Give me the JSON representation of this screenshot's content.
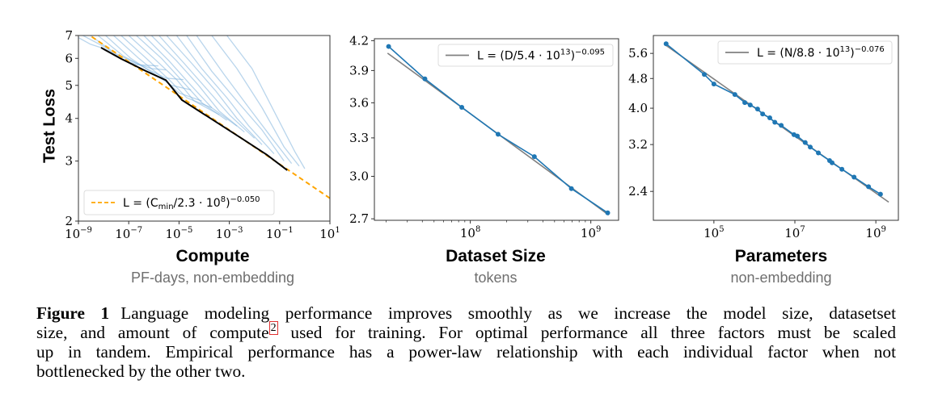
{
  "figure": {
    "label": "Figure 1",
    "caption_lines": [
      "Language modeling performance improves smoothly as we increase the model size, datasetset",
      [
        "size, and amount of compute",
        "2",
        " used for training.  For optimal performance all three factors must be scaled"
      ],
      "up in tandem.  Empirical performance has a power-law relationship with each individual factor when not",
      "bottlenecked by the other two."
    ],
    "footnote_ref": "2"
  },
  "chart_data": [
    {
      "type": "line",
      "id": "compute",
      "title": "Compute",
      "xlabel": "Compute",
      "xlabel_sub": "PF-days, non-embedding",
      "ylabel": "Test Loss",
      "xscale": "log",
      "yscale": "log",
      "xlim": [
        1e-09,
        10
      ],
      "ylim": [
        2,
        7
      ],
      "xticks": [
        {
          "value": 1e-09,
          "label": "10",
          "exp": "−9"
        },
        {
          "value": 1e-07,
          "label": "10",
          "exp": "−7"
        },
        {
          "value": 1e-05,
          "label": "10",
          "exp": "−5"
        },
        {
          "value": 0.001,
          "label": "10",
          "exp": "−3"
        },
        {
          "value": 0.1,
          "label": "10",
          "exp": "−1"
        },
        {
          "value": 10,
          "label": "10",
          "exp": "1"
        }
      ],
      "yticks": [
        {
          "value": 2,
          "label": "2"
        },
        {
          "value": 3,
          "label": "3"
        },
        {
          "value": 4,
          "label": "4"
        },
        {
          "value": 5,
          "label": "5"
        },
        {
          "value": 6,
          "label": "6"
        },
        {
          "value": 7,
          "label": "7"
        }
      ],
      "grid": false,
      "legend": {
        "position": "lower-left",
        "entries": [
          {
            "style": "dashed",
            "color": "#ffa500",
            "label_parts": [
              "L = (C",
              "min",
              "/2.3 · 10",
              "8",
              ")",
              "−0.050"
            ]
          }
        ]
      },
      "fit": {
        "name": "L = (C_min/2.3·10^8)^-0.050",
        "scale": 230000000.0,
        "exponent": -0.05,
        "color": "#ffa500",
        "style": "dashed"
      },
      "frontier": {
        "name": "compute-efficient frontier",
        "color": "#000000",
        "points": [
          [
            7.9e-09,
            6.45
          ],
          [
            5e-08,
            5.98
          ],
          [
            4.7e-07,
            5.51
          ],
          [
            3e-06,
            5.18
          ],
          [
            6.3e-06,
            4.84
          ],
          [
            1.3e-05,
            4.53
          ],
          [
            0.0002,
            3.98
          ],
          [
            0.0034,
            3.48
          ],
          [
            0.031,
            3.13
          ],
          [
            0.2,
            2.82
          ]
        ]
      },
      "training_curves": {
        "color": "#7fb3dc",
        "note": "individual training runs (light blue)",
        "runs": [
          {
            "start": 1e-09,
            "points": [
              [
                1e-09,
                6.9
              ],
              [
                3e-09,
                6.6
              ],
              [
                7.9e-09,
                6.45
              ]
            ]
          },
          {
            "start": 1.5e-09,
            "points": [
              [
                1.5e-09,
                7.0
              ],
              [
                1e-08,
                6.5
              ],
              [
                5e-08,
                6.0
              ],
              [
                2e-07,
                5.75
              ],
              [
                1.5e-06,
                5.7
              ]
            ]
          },
          {
            "start": 3e-09,
            "points": [
              [
                3e-09,
                7.0
              ],
              [
                3e-08,
                6.2
              ],
              [
                2e-07,
                5.8
              ],
              [
                8e-07,
                5.6
              ],
              [
                3e-06,
                5.55
              ]
            ]
          },
          {
            "start": 6e-09,
            "points": [
              [
                6e-09,
                7.0
              ],
              [
                6e-08,
                6.1
              ],
              [
                5e-07,
                5.6
              ],
              [
                3e-06,
                5.25
              ],
              [
                1.5e-05,
                5.2
              ]
            ]
          },
          {
            "start": 1.2e-08,
            "points": [
              [
                1.2e-08,
                7.0
              ],
              [
                1.2e-07,
                6.0
              ],
              [
                1e-06,
                5.4
              ],
              [
                5e-06,
                5.0
              ],
              [
                3e-05,
                4.85
              ]
            ]
          },
          {
            "start": 2.5e-08,
            "points": [
              [
                2.5e-08,
                7.0
              ],
              [
                2.5e-07,
                6.0
              ],
              [
                2e-06,
                5.3
              ],
              [
                1e-05,
                4.75
              ],
              [
                8e-05,
                4.5
              ]
            ]
          },
          {
            "start": 5e-08,
            "points": [
              [
                5e-08,
                7.0
              ],
              [
                5e-07,
                6.0
              ],
              [
                4e-06,
                5.2
              ],
              [
                2e-05,
                4.6
              ],
              [
                0.0002,
                4.3
              ]
            ]
          },
          {
            "start": 1e-07,
            "points": [
              [
                1e-07,
                7.0
              ],
              [
                1e-06,
                6.0
              ],
              [
                8e-06,
                5.2
              ],
              [
                4e-05,
                4.5
              ],
              [
                0.0004,
                4.1
              ]
            ]
          },
          {
            "start": 2e-07,
            "points": [
              [
                2e-07,
                7.0
              ],
              [
                2e-06,
                6.0
              ],
              [
                1.5e-05,
                5.1
              ],
              [
                8e-05,
                4.45
              ],
              [
                0.0008,
                3.95
              ]
            ]
          },
          {
            "start": 4e-07,
            "points": [
              [
                4e-07,
                7.0
              ],
              [
                4e-06,
                5.9
              ],
              [
                3e-05,
                5.0
              ],
              [
                0.0002,
                4.3
              ],
              [
                0.002,
                3.8
              ]
            ]
          },
          {
            "start": 8e-07,
            "points": [
              [
                8e-07,
                7.0
              ],
              [
                8e-06,
                5.9
              ],
              [
                6e-05,
                5.0
              ],
              [
                0.0004,
                4.2
              ],
              [
                0.004,
                3.65
              ]
            ]
          },
          {
            "start": 1.6e-06,
            "points": [
              [
                1.6e-06,
                7.0
              ],
              [
                1.6e-05,
                5.8
              ],
              [
                0.00012,
                4.9
              ],
              [
                0.001,
                4.1
              ],
              [
                0.01,
                3.5
              ]
            ]
          },
          {
            "start": 3.2e-06,
            "points": [
              [
                3.2e-06,
                7.0
              ],
              [
                3.2e-05,
                5.8
              ],
              [
                0.0003,
                4.8
              ],
              [
                0.002,
                4.0
              ],
              [
                0.02,
                3.35
              ]
            ]
          },
          {
            "start": 8e-06,
            "points": [
              [
                8e-06,
                7.0
              ],
              [
                8e-05,
                5.6
              ],
              [
                0.0008,
                4.6
              ],
              [
                0.006,
                3.8
              ],
              [
                0.06,
                3.15
              ]
            ]
          },
          {
            "start": 2e-05,
            "points": [
              [
                2e-05,
                7.0
              ],
              [
                0.0002,
                5.5
              ],
              [
                0.002,
                4.5
              ],
              [
                0.02,
                3.7
              ],
              [
                0.15,
                3.0
              ]
            ]
          },
          {
            "start": 5e-05,
            "points": [
              [
                5e-05,
                7.0
              ],
              [
                0.0006,
                5.4
              ],
              [
                0.006,
                4.3
              ],
              [
                0.05,
                3.5
              ],
              [
                0.3,
                2.95
              ]
            ]
          },
          {
            "start": 0.0002,
            "points": [
              [
                0.0002,
                7.0
              ],
              [
                0.002,
                5.6
              ],
              [
                0.02,
                4.3
              ],
              [
                0.15,
                3.3
              ],
              [
                0.6,
                2.9
              ]
            ]
          },
          {
            "start": 0.0008,
            "points": [
              [
                0.0008,
                7.0
              ],
              [
                0.008,
                5.6
              ],
              [
                0.06,
                4.2
              ],
              [
                0.4,
                3.2
              ],
              [
                1.0,
                2.85
              ]
            ]
          }
        ]
      }
    },
    {
      "type": "line",
      "id": "dataset",
      "title": "Dataset Size",
      "xlabel": "Dataset Size",
      "xlabel_sub": "tokens",
      "xscale": "log",
      "yscale": "log",
      "xlim": [
        16000000.0,
        1700000000.0
      ],
      "ylim": [
        2.69,
        4.22
      ],
      "xticks": [
        {
          "value": 100000000.0,
          "label": "10",
          "exp": "8"
        },
        {
          "value": 1000000000.0,
          "label": "10",
          "exp": "9"
        }
      ],
      "yticks": [
        {
          "value": 2.7,
          "label": "2.7"
        },
        {
          "value": 3.0,
          "label": "3.0"
        },
        {
          "value": 3.3,
          "label": "3.3"
        },
        {
          "value": 3.6,
          "label": "3.6"
        },
        {
          "value": 3.9,
          "label": "3.9"
        },
        {
          "value": 4.2,
          "label": "4.2"
        }
      ],
      "grid": false,
      "legend": {
        "position": "upper-right",
        "entries": [
          {
            "style": "solid",
            "color": "#808080",
            "label_parts": [
              "L = (D/5.4 · 10",
              "13",
              ")",
              "−0.095"
            ]
          }
        ]
      },
      "fit": {
        "scale": 54000000000000.0,
        "exponent": -0.095,
        "color": "#808080",
        "style": "solid"
      },
      "series": [
        {
          "name": "empirical",
          "color": "#1f77b4",
          "marker": "circle",
          "x": [
            21000000.0,
            42000000.0,
            85000000.0,
            170000000.0,
            340000000.0,
            690000000.0,
            1380000000.0
          ],
          "y": [
            4.14,
            3.82,
            3.56,
            3.33,
            3.15,
            2.91,
            2.74
          ]
        }
      ]
    },
    {
      "type": "line",
      "id": "parameters",
      "title": "Parameters",
      "xlabel": "Parameters",
      "xlabel_sub": "non-embedding",
      "xscale": "log",
      "yscale": "log",
      "xlim": [
        3200.0,
        3600000000.0
      ],
      "ylim": [
        2.01,
        6.25
      ],
      "xticks": [
        {
          "value": 100000.0,
          "label": "10",
          "exp": "5"
        },
        {
          "value": 10000000.0,
          "label": "10",
          "exp": "7"
        },
        {
          "value": 1000000000.0,
          "label": "10",
          "exp": "9"
        }
      ],
      "yticks": [
        {
          "value": 2.4,
          "label": "2.4"
        },
        {
          "value": 3.2,
          "label": "3.2"
        },
        {
          "value": 4.0,
          "label": "4.0"
        },
        {
          "value": 4.8,
          "label": "4.8"
        },
        {
          "value": 5.6,
          "label": "5.6"
        }
      ],
      "grid": false,
      "legend": {
        "position": "upper-right",
        "entries": [
          {
            "style": "solid",
            "color": "#808080",
            "label_parts": [
              "L = (N/8.8 · 10",
              "13",
              ")",
              "−0.076"
            ]
          }
        ]
      },
      "fit": {
        "scale": 88000000000000.0,
        "exponent": -0.076,
        "color": "#808080",
        "style": "solid"
      },
      "series": [
        {
          "name": "empirical",
          "color": "#1f77b4",
          "marker": "circle",
          "x": [
            6600.0,
            58000.0,
            100000.0,
            330000.0,
            580000.0,
            790000.0,
            1200000.0,
            1600000.0,
            2400000.0,
            3200000.0,
            4600000.0,
            9500000.0,
            11500000.0,
            18000000.0,
            24000000.0,
            38000000.0,
            72000000.0,
            83000000.0,
            145000000.0,
            290000000.0,
            660000000.0,
            1300000000.0
          ],
          "y": [
            5.94,
            4.92,
            4.64,
            4.35,
            4.14,
            4.08,
            3.98,
            3.86,
            3.77,
            3.67,
            3.6,
            3.4,
            3.37,
            3.24,
            3.15,
            3.04,
            2.9,
            2.86,
            2.75,
            2.62,
            2.47,
            2.36
          ]
        }
      ]
    }
  ]
}
